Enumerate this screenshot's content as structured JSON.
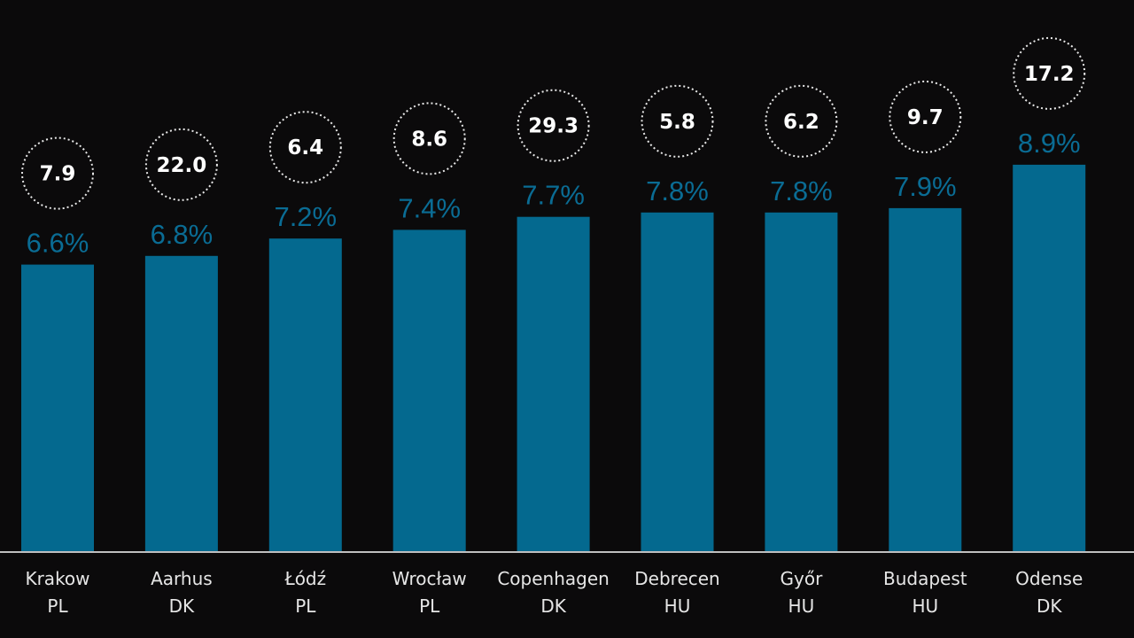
{
  "chart_data": {
    "type": "bar",
    "categories": [
      {
        "city": "Krakow",
        "country": "PL"
      },
      {
        "city": "Aarhus",
        "country": "DK"
      },
      {
        "city": "Łódź",
        "country": "PL"
      },
      {
        "city": "Wrocław",
        "country": "PL"
      },
      {
        "city": "Copenhagen",
        "country": "DK"
      },
      {
        "city": "Debrecen",
        "country": "HU"
      },
      {
        "city": "Győr",
        "country": "HU"
      },
      {
        "city": "Budapest",
        "country": "HU"
      },
      {
        "city": "Odense",
        "country": "DK"
      }
    ],
    "values": [
      6.6,
      6.8,
      7.2,
      7.4,
      7.7,
      7.8,
      7.8,
      7.9,
      8.9
    ],
    "value_labels": [
      "6.6%",
      "6.8%",
      "7.2%",
      "7.4%",
      "7.7%",
      "7.8%",
      "7.8%",
      "7.9%",
      "8.9%"
    ],
    "badge_values": [
      "7.9",
      "22.0",
      "6.4",
      "8.6",
      "29.3",
      "5.8",
      "6.2",
      "9.7",
      "17.2"
    ],
    "bar_color": "#04698f",
    "label_color": "#0a6c94",
    "background_color": "#0b0a0b",
    "axis_color": "#bfbfbf",
    "legend": "none",
    "grid": false
  }
}
